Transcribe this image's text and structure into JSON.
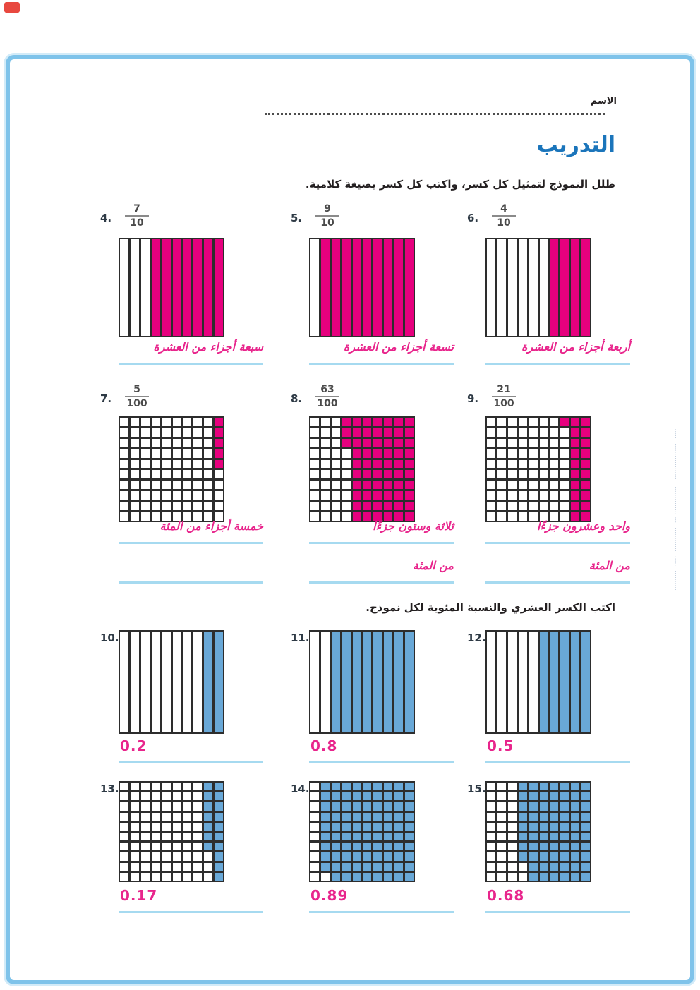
{
  "header": {
    "name_label": "الاسم",
    "title": "التدريب",
    "instruction_fractions": "ظلل النموذج لتمثيل كل كسر، واكتب كل كسر بصيغة كلامية.",
    "instruction_decimals": "اكتب الكسر العشري والنسبة المئوية لكل نموذج."
  },
  "colors": {
    "model_pink": "#e6007e",
    "model_blue": "#69a8d7",
    "answer_pink": "#e8258c",
    "title_blue": "#1b75bb",
    "underline_blue": "#a6daf0",
    "frame_blue": "#7ec3ea"
  },
  "fraction_problems": [
    {
      "number": "4.",
      "numerator": "7",
      "denominator": "10",
      "model": "tenths",
      "shaded": 7,
      "answer1": "سبعة أجزاء من العشرة",
      "answer2": ""
    },
    {
      "number": "5.",
      "numerator": "9",
      "denominator": "10",
      "model": "tenths",
      "shaded": 9,
      "answer1": "تسعة أجزاء من العشرة",
      "answer2": ""
    },
    {
      "number": "6.",
      "numerator": "4",
      "denominator": "10",
      "model": "tenths",
      "shaded": 4,
      "answer1": "أربعة أجزاء من العشرة",
      "answer2": ""
    },
    {
      "number": "7.",
      "numerator": "5",
      "denominator": "100",
      "model": "hundredths",
      "shaded": 5,
      "answer1": "خمسة أجزاء من المئة",
      "answer2": ""
    },
    {
      "number": "8.",
      "numerator": "63",
      "denominator": "100",
      "model": "hundredths",
      "shaded": 63,
      "answer1": "ثلاثة وستون جزءًا",
      "answer2": "من المئة"
    },
    {
      "number": "9.",
      "numerator": "21",
      "denominator": "100",
      "model": "hundredths",
      "shaded": 21,
      "answer1": "واحد وعشرون جزءًا",
      "answer2": "من المئة"
    }
  ],
  "decimal_problems": [
    {
      "number": "10.",
      "model": "tenths",
      "shaded": 2,
      "answer": "0.2"
    },
    {
      "number": "11.",
      "model": "tenths",
      "shaded": 8,
      "answer": "0.8"
    },
    {
      "number": "12.",
      "model": "tenths",
      "shaded": 5,
      "answer": "0.5"
    },
    {
      "number": "13.",
      "model": "hundredths",
      "shaded": 17,
      "answer": "0.17"
    },
    {
      "number": "14.",
      "model": "hundredths",
      "shaded": 89,
      "answer": "0.89"
    },
    {
      "number": "15.",
      "model": "hundredths",
      "shaded": 68,
      "answer": "0.68"
    }
  ],
  "side_text": "·········································· ····································"
}
